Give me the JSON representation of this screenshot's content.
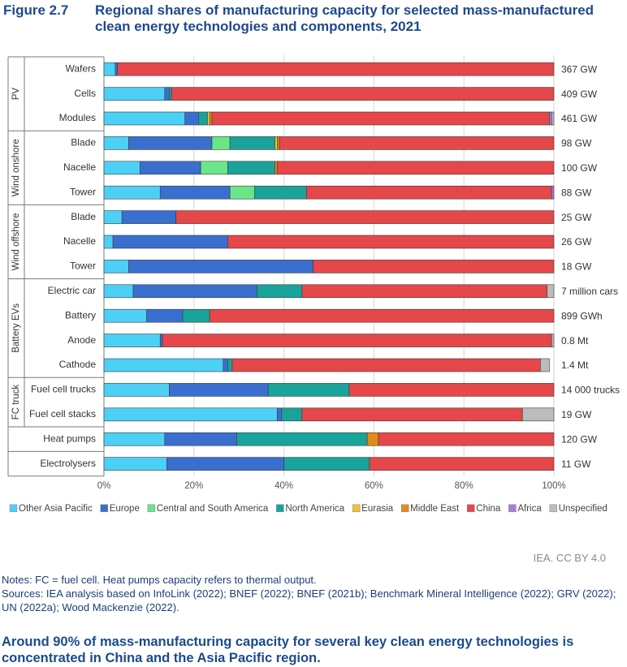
{
  "figure": {
    "number": "Figure 2.7",
    "title": "Regional shares of manufacturing capacity for selected mass-manufactured clean energy technologies and components, 2021"
  },
  "chart_data": {
    "type": "bar",
    "orientation": "horizontal",
    "stacked": true,
    "xlim": [
      0,
      100
    ],
    "xticks": [
      "0%",
      "20%",
      "40%",
      "60%",
      "80%",
      "100%"
    ],
    "grid": true,
    "legend_position": "bottom",
    "groups": [
      {
        "name": "PV",
        "rows": [
          0,
          1,
          2
        ]
      },
      {
        "name": "Wind onshore",
        "rows": [
          3,
          4,
          5
        ]
      },
      {
        "name": "Wind offshore",
        "rows": [
          6,
          7,
          8
        ]
      },
      {
        "name": "Battery EVs",
        "rows": [
          9,
          10,
          11,
          12
        ]
      },
      {
        "name": "FC truck",
        "rows": [
          13,
          14
        ]
      },
      {
        "name": "",
        "rows": [
          15
        ]
      },
      {
        "name": "",
        "rows": [
          16
        ]
      }
    ],
    "categories": [
      "Wafers",
      "Cells",
      "Modules",
      "Blade",
      "Nacelle",
      "Tower",
      "Blade",
      "Nacelle",
      "Tower",
      "Electric car",
      "Battery",
      "Anode",
      "Cathode",
      "Fuel cell trucks",
      "Fuel cell stacks",
      "Heat pumps",
      "Electrolysers"
    ],
    "totals": [
      "367 GW",
      "409 GW",
      "461 GW",
      "98 GW",
      "100 GW",
      "88 GW",
      "25 GW",
      "26 GW",
      "18 GW",
      "7 million cars",
      "899 GWh",
      "0.8 Mt",
      "1.4 Mt",
      "14 000 trucks",
      "19 GW",
      "120 GW",
      "11 GW"
    ],
    "series": [
      {
        "name": "Other Asia Pacific",
        "color": "#4dd0f5",
        "values": [
          2.5,
          13.5,
          18,
          5.5,
          8,
          12.5,
          4,
          2,
          5.5,
          6.5,
          9.5,
          12.5,
          26.5,
          14.5,
          38.5,
          13.5,
          14
        ]
      },
      {
        "name": "Europe",
        "color": "#3a6fcf",
        "values": [
          0.5,
          1,
          3,
          18.5,
          13.5,
          15.5,
          12,
          25.5,
          41,
          27.5,
          8,
          0.5,
          1,
          22,
          1,
          16,
          26
        ]
      },
      {
        "name": "Central and South America",
        "color": "#6be58a",
        "values": [
          0,
          0,
          0,
          4,
          6,
          5.5,
          0,
          0,
          0,
          0,
          0,
          0,
          0,
          0,
          0,
          0,
          0
        ]
      },
      {
        "name": "North America",
        "color": "#1aa39a",
        "values": [
          0,
          0.5,
          2,
          10,
          10.5,
          11.5,
          0,
          0,
          0,
          10,
          6,
          0,
          1,
          18,
          4.5,
          29,
          19
        ]
      },
      {
        "name": "Eurasia",
        "color": "#f3c233",
        "values": [
          0,
          0,
          0.5,
          0.5,
          0,
          0,
          0,
          0,
          0,
          0,
          0,
          0,
          0,
          0,
          0,
          0,
          0
        ]
      },
      {
        "name": "Middle East",
        "color": "#e28a1a",
        "values": [
          0,
          0,
          0.5,
          0.5,
          0.5,
          0,
          0,
          0,
          0,
          0,
          0,
          0,
          0,
          0,
          0,
          2.5,
          0
        ]
      },
      {
        "name": "China",
        "color": "#e5474a",
        "values": [
          97,
          85,
          75,
          61,
          61.5,
          54.5,
          84,
          72.5,
          53.5,
          54.5,
          76.5,
          86.5,
          68.5,
          45.5,
          49,
          39,
          41
        ]
      },
      {
        "name": "Africa",
        "color": "#a97be0",
        "values": [
          0,
          0,
          0.5,
          0,
          0,
          0.5,
          0,
          0,
          0,
          0,
          0,
          0,
          0,
          0,
          0,
          0,
          0
        ]
      },
      {
        "name": "Unspecified",
        "color": "#bcbcbc",
        "values": [
          0,
          0,
          0.5,
          0,
          0,
          0,
          0,
          0,
          0,
          1.5,
          0,
          0.5,
          2,
          0,
          7,
          0,
          0
        ]
      }
    ]
  },
  "credit": "IEA. CC BY 4.0",
  "notes": {
    "line1": "Notes: FC = fuel cell. Heat pumps capacity refers to thermal output.",
    "line2": "Sources: IEA analysis based on InfoLink (2022); BNEF (2022); BNEF (2021b); Benchmark Mineral Intelligence (2022); GRV (2022); UN (2022a); Wood Mackenzie (2022)."
  },
  "takeaway": "Around 90% of mass-manufacturing capacity for several key clean energy technologies is concentrated in China and the Asia Pacific region."
}
